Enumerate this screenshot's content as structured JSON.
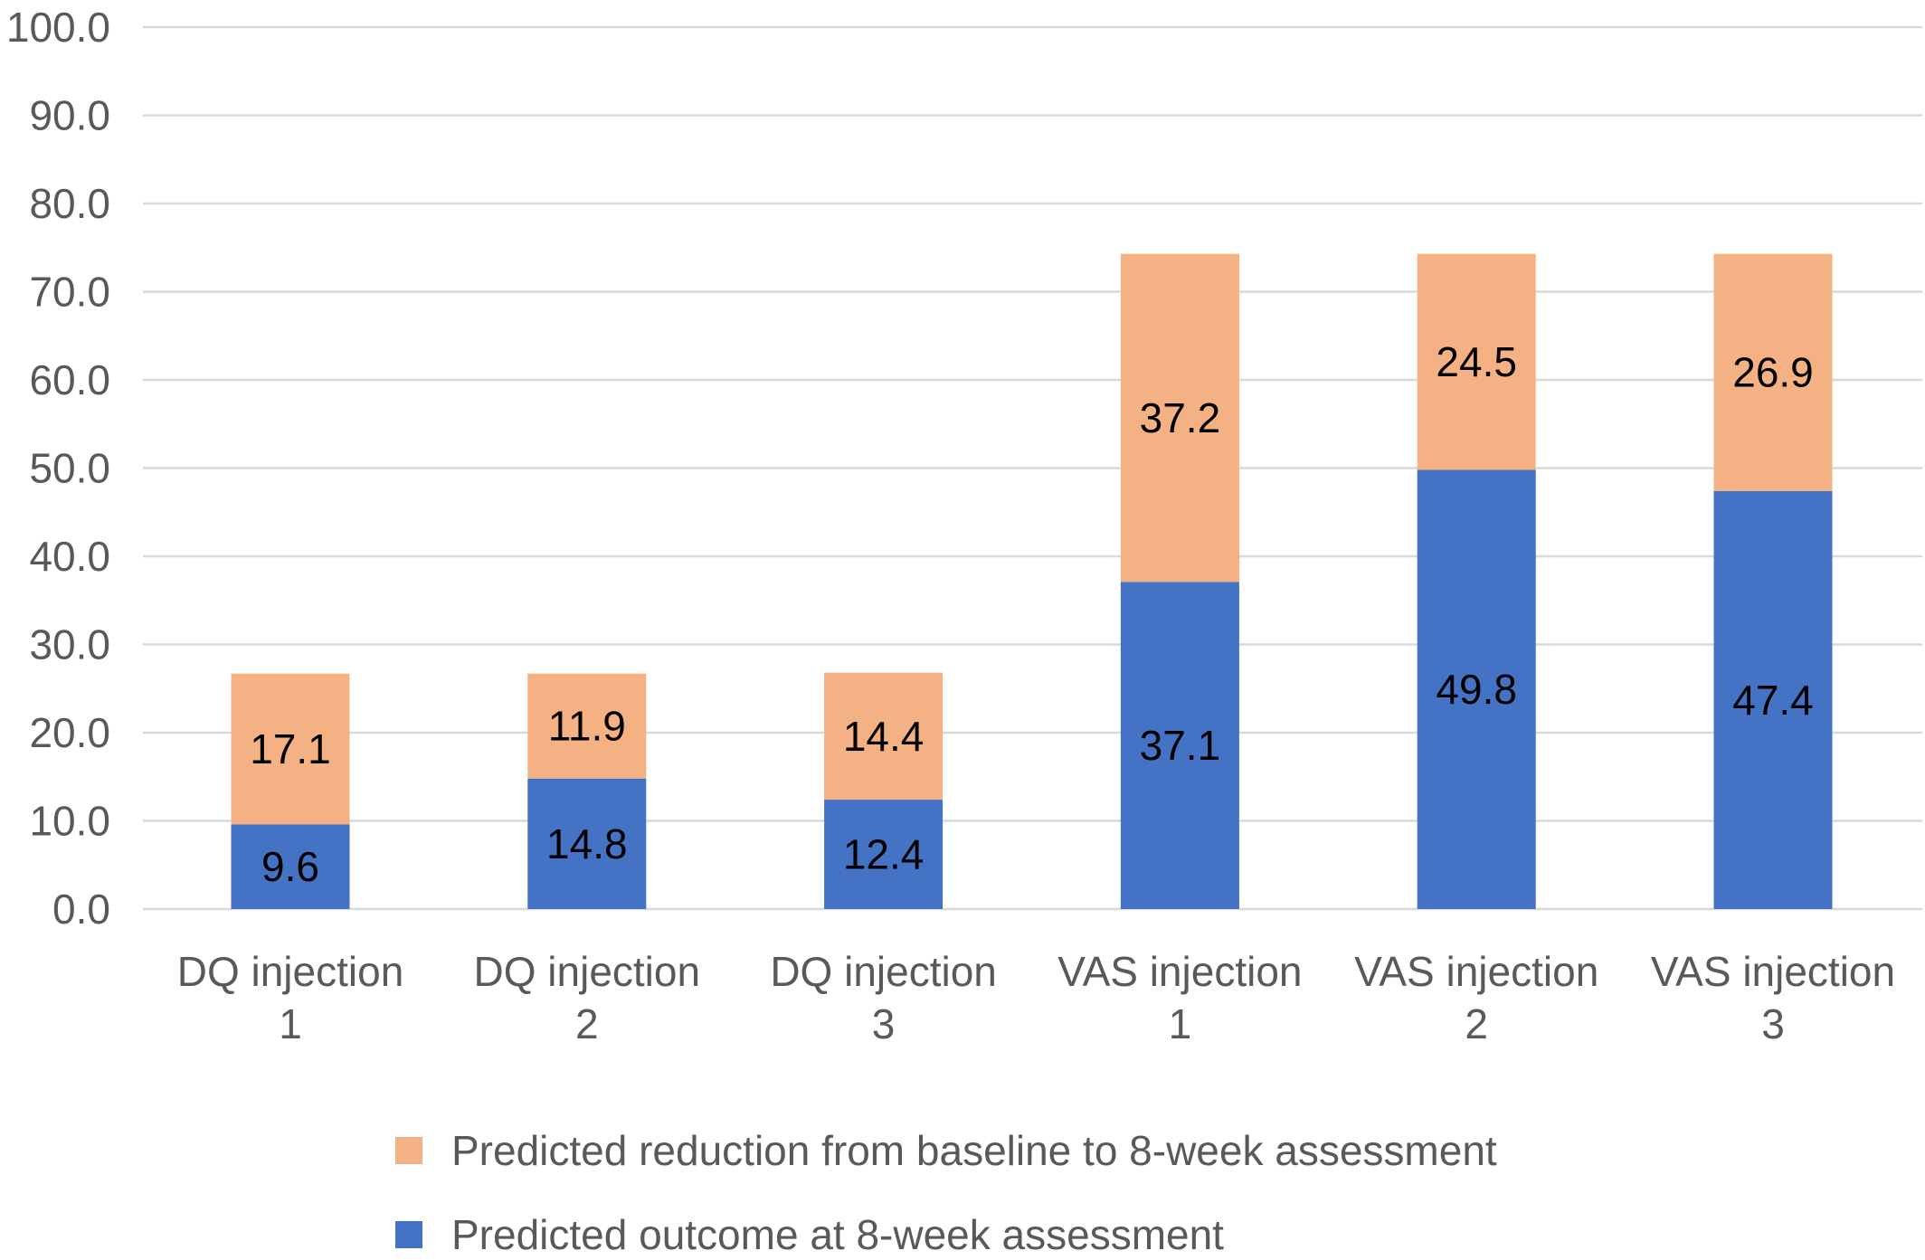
{
  "chart_data": {
    "type": "bar",
    "stacked": true,
    "categories": [
      [
        "DQ injection",
        "1"
      ],
      [
        "DQ injection",
        "2"
      ],
      [
        "DQ injection",
        "3"
      ],
      [
        "VAS injection",
        "1"
      ],
      [
        "VAS injection",
        "2"
      ],
      [
        "VAS injection",
        "3"
      ]
    ],
    "series": [
      {
        "name": "Predicted outcome at 8-week assessment",
        "color": "#4472c4",
        "values": [
          9.6,
          14.8,
          12.4,
          37.1,
          49.8,
          47.4
        ],
        "labels": [
          "9.6",
          "14.8",
          "12.4",
          "37.1",
          "49.8",
          "47.4"
        ]
      },
      {
        "name": "Predicted reduction from baseline to 8-week assessment",
        "color": "#f4b183",
        "values": [
          17.1,
          11.9,
          14.4,
          37.2,
          24.5,
          26.9
        ],
        "labels": [
          "17.1",
          "11.9",
          "14.4",
          "37.2",
          "24.5",
          "26.9"
        ]
      }
    ],
    "ylim": [
      0,
      100
    ],
    "yticks": [
      0,
      10,
      20,
      30,
      40,
      50,
      60,
      70,
      80,
      90,
      100
    ],
    "ytick_labels": [
      "0.0",
      "10.0",
      "20.0",
      "30.0",
      "40.0",
      "50.0",
      "60.0",
      "70.0",
      "80.0",
      "90.0",
      "100.0"
    ],
    "grid": true,
    "legend": {
      "position": "bottom",
      "order": [
        "Predicted reduction from baseline to 8-week assessment",
        "Predicted outcome at 8-week assessment"
      ]
    },
    "title": "",
    "xlabel": "",
    "ylabel": ""
  }
}
